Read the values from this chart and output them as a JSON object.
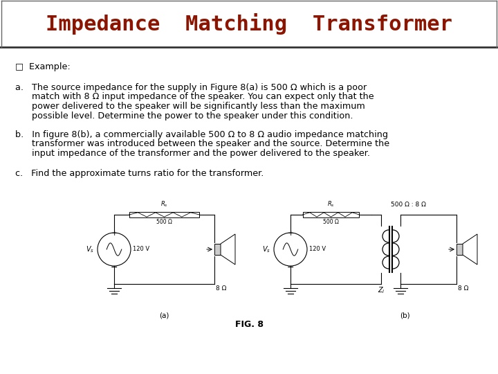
{
  "title": "Impedance  Matching  Transformer",
  "title_color": "#8B1500",
  "title_fontsize": 22,
  "title_font": "monospace",
  "title_box_color": "#FFFFFF",
  "title_border_color": "#333333",
  "bg_color": "#FFFFFF",
  "text_color": "#000000",
  "text_fontsize": 9.2,
  "bullet": "□",
  "example_label": "Example:",
  "item_a_line1": "a.   The source impedance for the supply in Figure 8(a) is 500 Ω which is a poor",
  "item_a_line2": "      match with 8 Ω input impedance of the speaker. You can expect only that the",
  "item_a_line3": "      power delivered to the speaker will be significantly less than the maximum",
  "item_a_line4": "      possible level. Determine the power to the speaker under this condition.",
  "item_b_line1": "b.   In figure 8(b), a commercially available 500 Ω to 8 Ω audio impedance matching",
  "item_b_line2": "      transformer was introduced between the speaker and the source. Determine the",
  "item_b_line3": "      input impedance of the transformer and the power delivered to the speaker.",
  "item_c_line1": "c.   Find the approximate turns ratio for the transformer.",
  "fig_caption": "FIG. 8"
}
